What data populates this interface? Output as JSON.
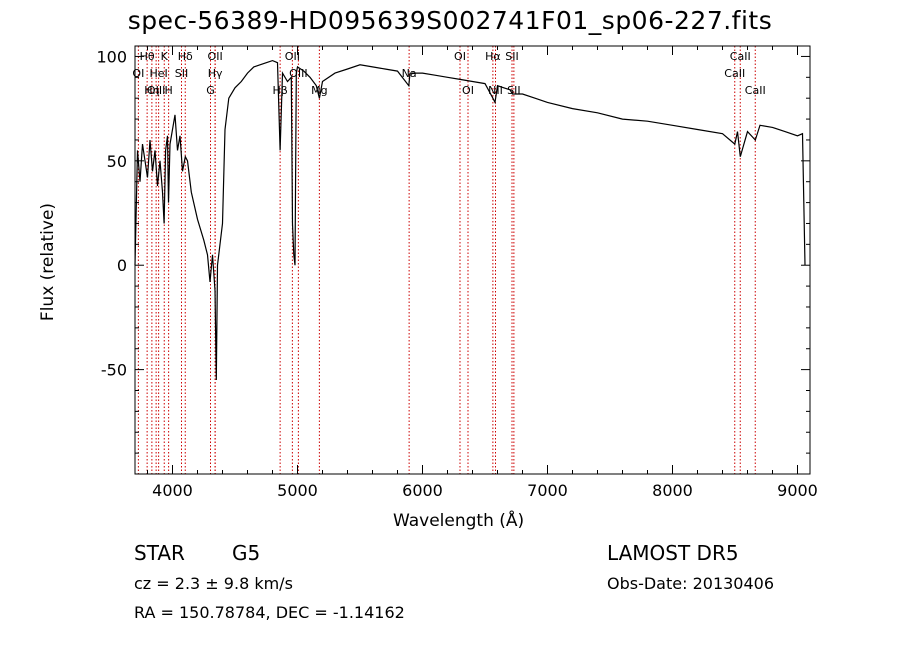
{
  "chart_data": {
    "type": "line",
    "title": "spec-56389-HD095639S002741F01_sp06-227.fits",
    "xlabel": "Wavelength (Å)",
    "ylabel": "Flux (relative)",
    "xlim": [
      3700,
      9100
    ],
    "ylim": [
      -100,
      105
    ],
    "xticks": [
      4000,
      5000,
      6000,
      7000,
      8000,
      9000
    ],
    "yticks": [
      -50,
      0,
      50,
      100
    ],
    "line_color": "#000000",
    "marker_color": "#cc0000",
    "series": [
      {
        "x": [
          3700,
          3720,
          3740,
          3760,
          3780,
          3800,
          3820,
          3840,
          3860,
          3880,
          3900,
          3920,
          3933,
          3945,
          3960,
          3968,
          3980,
          4000,
          4020,
          4040,
          4060,
          4080,
          4102,
          4120,
          4150,
          4200,
          4250,
          4280,
          4300,
          4320,
          4340,
          4350,
          4360,
          4380,
          4400,
          4420,
          4450,
          4500,
          4550,
          4600,
          4650,
          4700,
          4750,
          4800,
          4840,
          4861,
          4880,
          4920,
          4950,
          4960,
          4970,
          4980,
          4990,
          5000,
          5050,
          5100,
          5150,
          5175,
          5200,
          5300,
          5400,
          5500,
          5600,
          5700,
          5800,
          5890,
          5900,
          6000,
          6100,
          6200,
          6300,
          6400,
          6500,
          6563,
          6580,
          6600,
          6650,
          6700,
          6720,
          6800,
          6900,
          7000,
          7200,
          7400,
          7600,
          7800,
          8000,
          8200,
          8400,
          8498,
          8520,
          8542,
          8600,
          8662,
          8700,
          8800,
          8900,
          9000,
          9040,
          9060
        ],
        "y": [
          0,
          55,
          40,
          58,
          50,
          42,
          60,
          45,
          55,
          38,
          50,
          35,
          20,
          55,
          62,
          30,
          58,
          65,
          72,
          55,
          62,
          45,
          52,
          50,
          35,
          22,
          12,
          5,
          -8,
          5,
          -12,
          -55,
          0,
          10,
          20,
          65,
          80,
          85,
          88,
          92,
          95,
          96,
          97,
          98,
          97,
          55,
          92,
          88,
          90,
          20,
          5,
          0,
          92,
          95,
          93,
          90,
          86,
          80,
          88,
          92,
          94,
          96,
          95,
          94,
          93,
          86,
          92,
          92,
          91,
          90,
          89,
          88,
          87,
          80,
          78,
          86,
          85,
          84,
          82,
          82,
          80,
          78,
          75,
          73,
          70,
          69,
          67,
          65,
          63,
          58,
          64,
          52,
          64,
          60,
          67,
          66,
          64,
          62,
          63,
          0
        ]
      }
    ],
    "line_markers": [
      {
        "label": "Hθ",
        "x": 3797,
        "row": 0
      },
      {
        "label": "K",
        "x": 3934,
        "row": 0
      },
      {
        "label": "Hδ",
        "x": 4102,
        "row": 0
      },
      {
        "label": "OII",
        "x": 4341,
        "row": 0
      },
      {
        "label": "OII",
        "x": 4959,
        "row": 0
      },
      {
        "label": "OI",
        "x": 6300,
        "row": 0
      },
      {
        "label": "Hα",
        "x": 6563,
        "row": 0
      },
      {
        "label": "SII",
        "x": 6716,
        "row": 0
      },
      {
        "label": "CaII",
        "x": 8542,
        "row": 0
      },
      {
        "label": "OI",
        "x": 3727,
        "row": 1
      },
      {
        "label": "HeI",
        "x": 3889,
        "row": 1
      },
      {
        "label": "SII",
        "x": 4072,
        "row": 1
      },
      {
        "label": "Hγ",
        "x": 4341,
        "row": 1
      },
      {
        "label": "OIII",
        "x": 5007,
        "row": 1
      },
      {
        "label": "Na",
        "x": 5893,
        "row": 1
      },
      {
        "label": "CaII",
        "x": 8498,
        "row": 1
      },
      {
        "label": "OIII",
        "x": 3869,
        "row": 2
      },
      {
        "label": "Hη",
        "x": 3835,
        "row": 2
      },
      {
        "label": "H",
        "x": 3969,
        "row": 2
      },
      {
        "label": "G",
        "x": 4304,
        "row": 2
      },
      {
        "label": "Hβ",
        "x": 4861,
        "row": 2
      },
      {
        "label": "Mg",
        "x": 5175,
        "row": 2
      },
      {
        "label": "OI",
        "x": 6364,
        "row": 2
      },
      {
        "label": "NII",
        "x": 6584,
        "row": 2
      },
      {
        "label": "SII",
        "x": 6731,
        "row": 2
      },
      {
        "label": "CaII",
        "x": 8662,
        "row": 2
      }
    ]
  },
  "info": {
    "class": "STAR",
    "subclass": "G5",
    "cz": "cz = 2.3 ± 9.8 km/s",
    "radec": "RA = 150.78784, DEC =  -1.14162",
    "survey": "LAMOST DR5",
    "obs_date": "Obs-Date: 20130406"
  }
}
